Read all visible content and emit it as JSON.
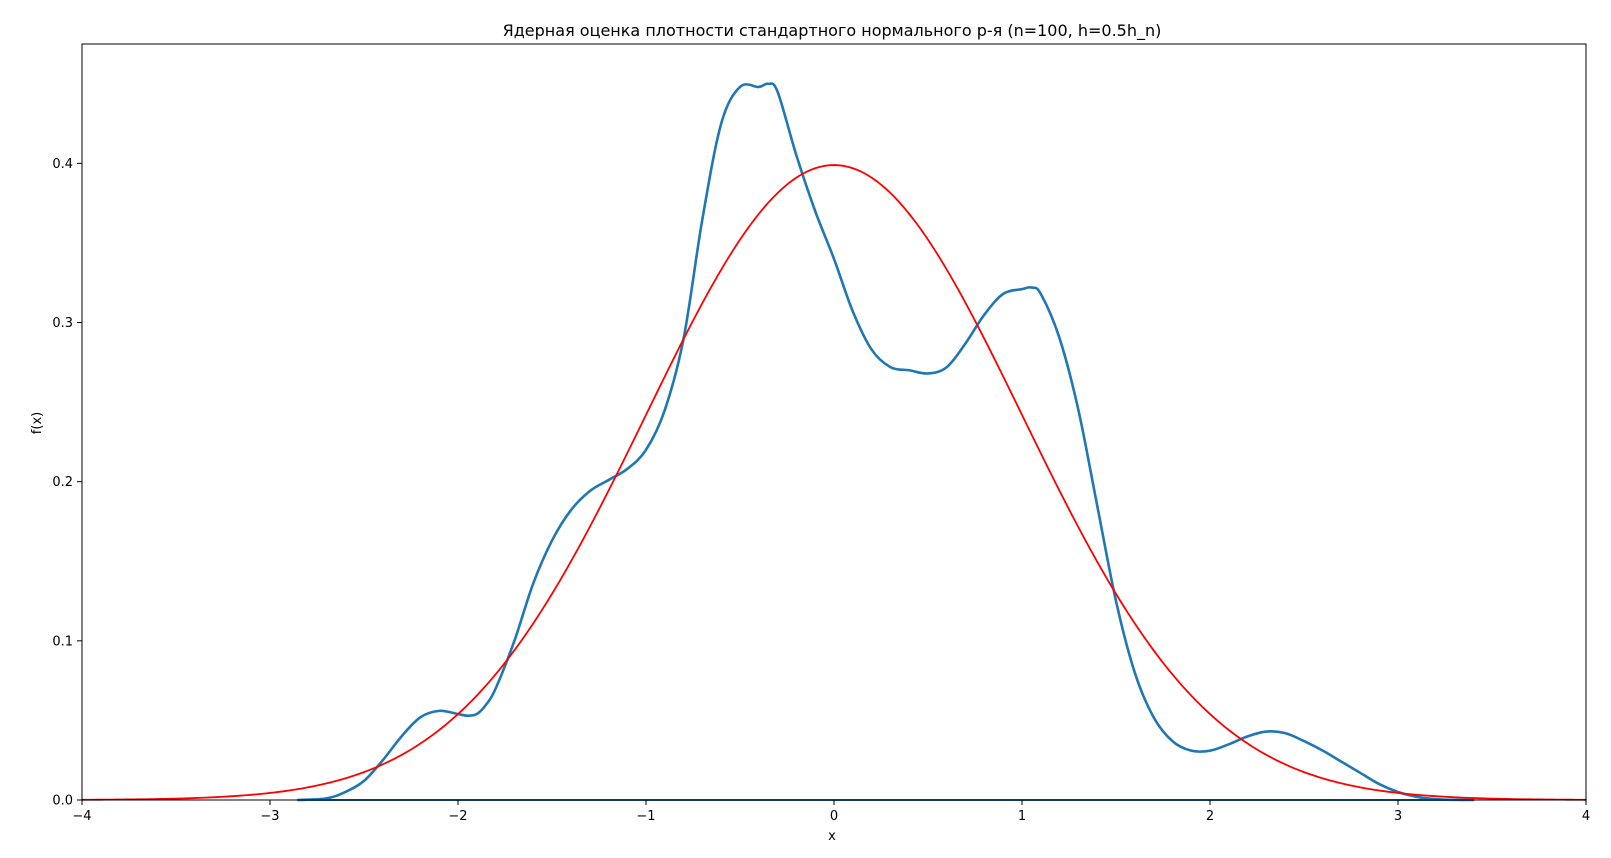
{
  "chart_data": {
    "type": "line",
    "title": "Ядерная оценка плотности стандартного нормального р-я (n=100, h=0.5h_n)",
    "xlabel": "x",
    "ylabel": "f(x)",
    "xlim": [
      -4,
      4
    ],
    "ylim": [
      0,
      0.475
    ],
    "grid": false,
    "legend": "none",
    "x_ticks": [
      -4,
      -3,
      -2,
      -1,
      0,
      1,
      2,
      3,
      4
    ],
    "x_tick_labels": [
      "−4",
      "−3",
      "−2",
      "−1",
      "0",
      "1",
      "2",
      "3",
      "4"
    ],
    "y_ticks": [
      0.0,
      0.1,
      0.2,
      0.3,
      0.4
    ],
    "y_tick_labels": [
      "0.0",
      "0.1",
      "0.2",
      "0.3",
      "0.4"
    ],
    "series": [
      {
        "color": "#1f77b4",
        "x": [
          -2.85,
          -2.7,
          -2.6,
          -2.5,
          -2.4,
          -2.3,
          -2.2,
          -2.1,
          -2.0,
          -1.95,
          -1.9,
          -1.85,
          -1.8,
          -1.7,
          -1.6,
          -1.5,
          -1.4,
          -1.3,
          -1.2,
          -1.1,
          -1.0,
          -0.9,
          -0.8,
          -0.7,
          -0.6,
          -0.5,
          -0.4,
          -0.35,
          -0.3,
          -0.2,
          -0.1,
          0.0,
          0.1,
          0.2,
          0.3,
          0.4,
          0.5,
          0.6,
          0.7,
          0.8,
          0.9,
          1.0,
          1.05,
          1.1,
          1.2,
          1.3,
          1.4,
          1.5,
          1.6,
          1.7,
          1.8,
          1.9,
          2.0,
          2.1,
          2.2,
          2.3,
          2.4,
          2.5,
          2.6,
          2.7,
          2.8,
          2.9,
          3.0,
          3.1,
          3.2,
          3.3,
          3.4
        ],
        "y": [
          0.0,
          0.001,
          0.005,
          0.012,
          0.025,
          0.04,
          0.052,
          0.056,
          0.054,
          0.053,
          0.054,
          0.06,
          0.07,
          0.1,
          0.136,
          0.163,
          0.182,
          0.194,
          0.201,
          0.208,
          0.22,
          0.245,
          0.29,
          0.365,
          0.425,
          0.448,
          0.448,
          0.45,
          0.445,
          0.405,
          0.37,
          0.34,
          0.307,
          0.283,
          0.272,
          0.27,
          0.268,
          0.272,
          0.287,
          0.305,
          0.318,
          0.321,
          0.322,
          0.318,
          0.29,
          0.245,
          0.185,
          0.125,
          0.08,
          0.052,
          0.037,
          0.031,
          0.031,
          0.035,
          0.04,
          0.043,
          0.042,
          0.037,
          0.031,
          0.024,
          0.017,
          0.01,
          0.005,
          0.002,
          0.0005,
          0.0001,
          0.0
        ]
      },
      {
        "color": "#ff0000",
        "function": "standard_normal_pdf",
        "x_range": [
          -4,
          4
        ]
      }
    ]
  }
}
